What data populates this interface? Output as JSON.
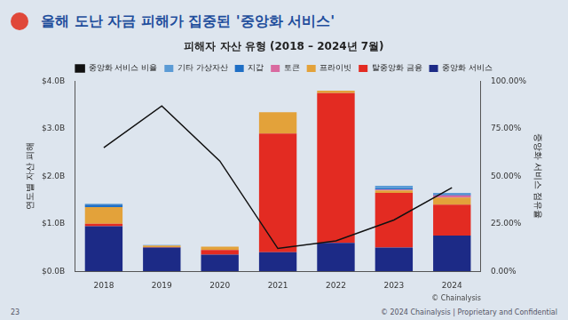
{
  "header": {
    "title": "올해 도난 자금 피해가 집중된 '중앙화 서비스'"
  },
  "chart_data": {
    "type": "bar",
    "stacked": true,
    "title": "피해자 자산 유형 (2018 – 2024년 7월)",
    "categories": [
      "2018",
      "2019",
      "2020",
      "2021",
      "2022",
      "2023",
      "2024"
    ],
    "y_label": "연도별 자산 피해",
    "y2_label": "중앙화 서비스 점유율",
    "ylim": [
      0,
      4
    ],
    "yticks": [
      {
        "value": 0,
        "label": "$0.0B"
      },
      {
        "value": 1,
        "label": "$1.0B"
      },
      {
        "value": 2,
        "label": "$2.0B"
      },
      {
        "value": 3,
        "label": "$3.0B"
      },
      {
        "value": 4,
        "label": "$4.0B"
      }
    ],
    "y2lim": [
      0,
      100
    ],
    "y2ticks": [
      {
        "value": 0,
        "label": "0.00%"
      },
      {
        "value": 25,
        "label": "25.00%"
      },
      {
        "value": 50,
        "label": "50.00%"
      },
      {
        "value": 75,
        "label": "75.00%"
      },
      {
        "value": 100,
        "label": "100.00%"
      }
    ],
    "grid": false,
    "legend": "top",
    "series": [
      {
        "name": "중앙화 서비스 비율",
        "type": "line",
        "axis": "y2",
        "color": "#111111",
        "values": [
          65,
          87,
          58,
          12,
          16,
          27,
          44
        ]
      },
      {
        "name": "기타 가상자산",
        "type": "bar",
        "color": "#5b9bd5",
        "values": [
          0.02,
          0.0,
          0.0,
          0.0,
          0.0,
          0.05,
          0.03
        ]
      },
      {
        "name": "지갑",
        "type": "bar",
        "color": "#1f6fc5",
        "values": [
          0.05,
          0.01,
          0.0,
          0.0,
          0.0,
          0.03,
          0.02
        ]
      },
      {
        "name": "토큰",
        "type": "bar",
        "color": "#d96aa0",
        "values": [
          0.0,
          0.0,
          0.0,
          0.0,
          0.0,
          0.02,
          0.05
        ]
      },
      {
        "name": "프라이빗",
        "type": "bar",
        "color": "#e3a23a",
        "values": [
          0.35,
          0.03,
          0.07,
          0.45,
          0.05,
          0.05,
          0.15
        ]
      },
      {
        "name": "탈중앙화 금융",
        "type": "bar",
        "color": "#e32b22",
        "values": [
          0.05,
          0.01,
          0.1,
          2.5,
          3.15,
          1.15,
          0.65
        ]
      },
      {
        "name": "중앙화 서비스",
        "type": "bar",
        "color": "#1c2a86",
        "values": [
          0.95,
          0.5,
          0.35,
          0.4,
          0.6,
          0.5,
          0.75
        ]
      }
    ],
    "annotations": [
      "© Chainalysis"
    ]
  },
  "footer": "© 2024 Chainalysis | Proprietary and Confidential",
  "page": "23"
}
